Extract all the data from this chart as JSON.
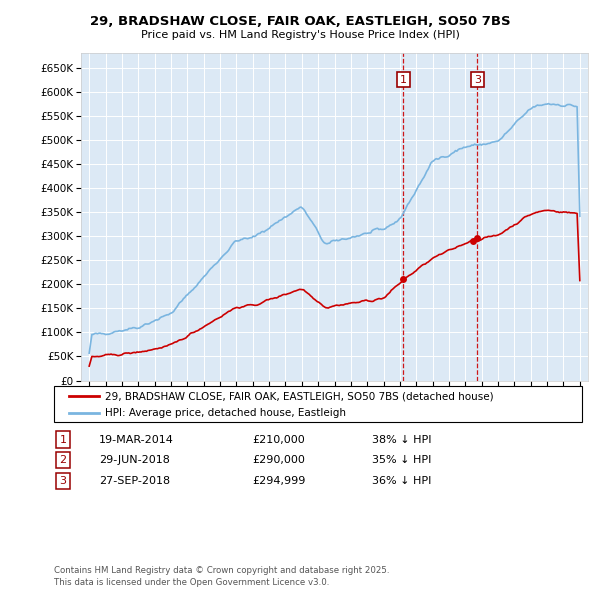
{
  "title": "29, BRADSHAW CLOSE, FAIR OAK, EASTLEIGH, SO50 7BS",
  "subtitle": "Price paid vs. HM Land Registry's House Price Index (HPI)",
  "plot_bg_color": "#dce9f5",
  "hpi_color": "#7ab5e0",
  "price_color": "#cc0000",
  "vline_color": "#cc0000",
  "ylim": [
    0,
    680000
  ],
  "yticks": [
    0,
    50000,
    100000,
    150000,
    200000,
    250000,
    300000,
    350000,
    400000,
    450000,
    500000,
    550000,
    600000,
    650000
  ],
  "transaction_labels": [
    {
      "num": 1,
      "date": "19-MAR-2014",
      "price": 210000,
      "price_str": "£210,000",
      "pct": "38%",
      "direction": "↓",
      "x_year": 2014.21
    },
    {
      "num": 2,
      "date": "29-JUN-2018",
      "price": 290000,
      "price_str": "£290,000",
      "pct": "35%",
      "direction": "↓",
      "x_year": 2018.49
    },
    {
      "num": 3,
      "date": "27-SEP-2018",
      "price": 294999,
      "price_str": "£294,999",
      "pct": "36%",
      "direction": "↓",
      "x_year": 2018.74
    }
  ],
  "legend_label_red": "29, BRADSHAW CLOSE, FAIR OAK, EASTLEIGH, SO50 7BS (detached house)",
  "legend_label_blue": "HPI: Average price, detached house, Eastleigh",
  "footer_text": "Contains HM Land Registry data © Crown copyright and database right 2025.\nThis data is licensed under the Open Government Licence v3.0.",
  "xlim": [
    1994.5,
    2025.5
  ]
}
